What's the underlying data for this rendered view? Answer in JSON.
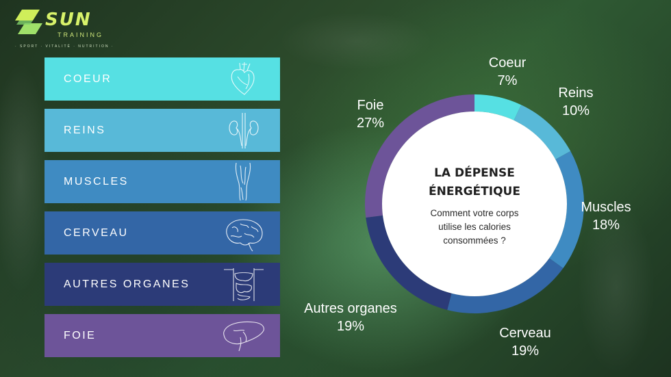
{
  "brand": {
    "name": "SUN",
    "sub": "TRAINING",
    "tagline": "· SPORT · VITALITÉ · NUTRITION ·",
    "accent": "#d8f26a"
  },
  "chart_data": {
    "type": "pie",
    "title": "LA DÉPENSE ÉNERGÉTIQUE",
    "title_lines": [
      "LA DÉPENSE",
      "ÉNERGÉTIQUE"
    ],
    "subtitle": "Comment votre corps utilise les calories consommées ?",
    "subtitle_lines": [
      "Comment votre corps",
      "utilise les calories",
      "consommées ?"
    ],
    "slices": [
      {
        "label": "Coeur",
        "value": 7,
        "display": "7%",
        "color": "#56e0e3"
      },
      {
        "label": "Reins",
        "value": 10,
        "display": "10%",
        "color": "#58b9d8"
      },
      {
        "label": "Muscles",
        "value": 18,
        "display": "18%",
        "color": "#3f8bc2"
      },
      {
        "label": "Cerveau",
        "value": 19,
        "display": "19%",
        "color": "#3366a6"
      },
      {
        "label": "Autres organes",
        "value": 19,
        "display": "19%",
        "color": "#2c3b78"
      },
      {
        "label": "Foie",
        "value": 27,
        "display": "27%",
        "color": "#6d5499"
      }
    ],
    "donut": true,
    "legend": "left"
  },
  "legend_items": [
    {
      "label": "COEUR",
      "color": "#56e0e3",
      "icon": "heart-icon"
    },
    {
      "label": "REINS",
      "color": "#58b9d8",
      "icon": "kidneys-icon"
    },
    {
      "label": "MUSCLES",
      "color": "#3f8bc2",
      "icon": "leg-muscles-icon"
    },
    {
      "label": "CERVEAU",
      "color": "#3366a6",
      "icon": "brain-icon"
    },
    {
      "label": "AUTRES ORGANES",
      "color": "#2c3b78",
      "icon": "abdominal-organs-icon"
    },
    {
      "label": "FOIE",
      "color": "#6d5499",
      "icon": "liver-icon"
    }
  ]
}
